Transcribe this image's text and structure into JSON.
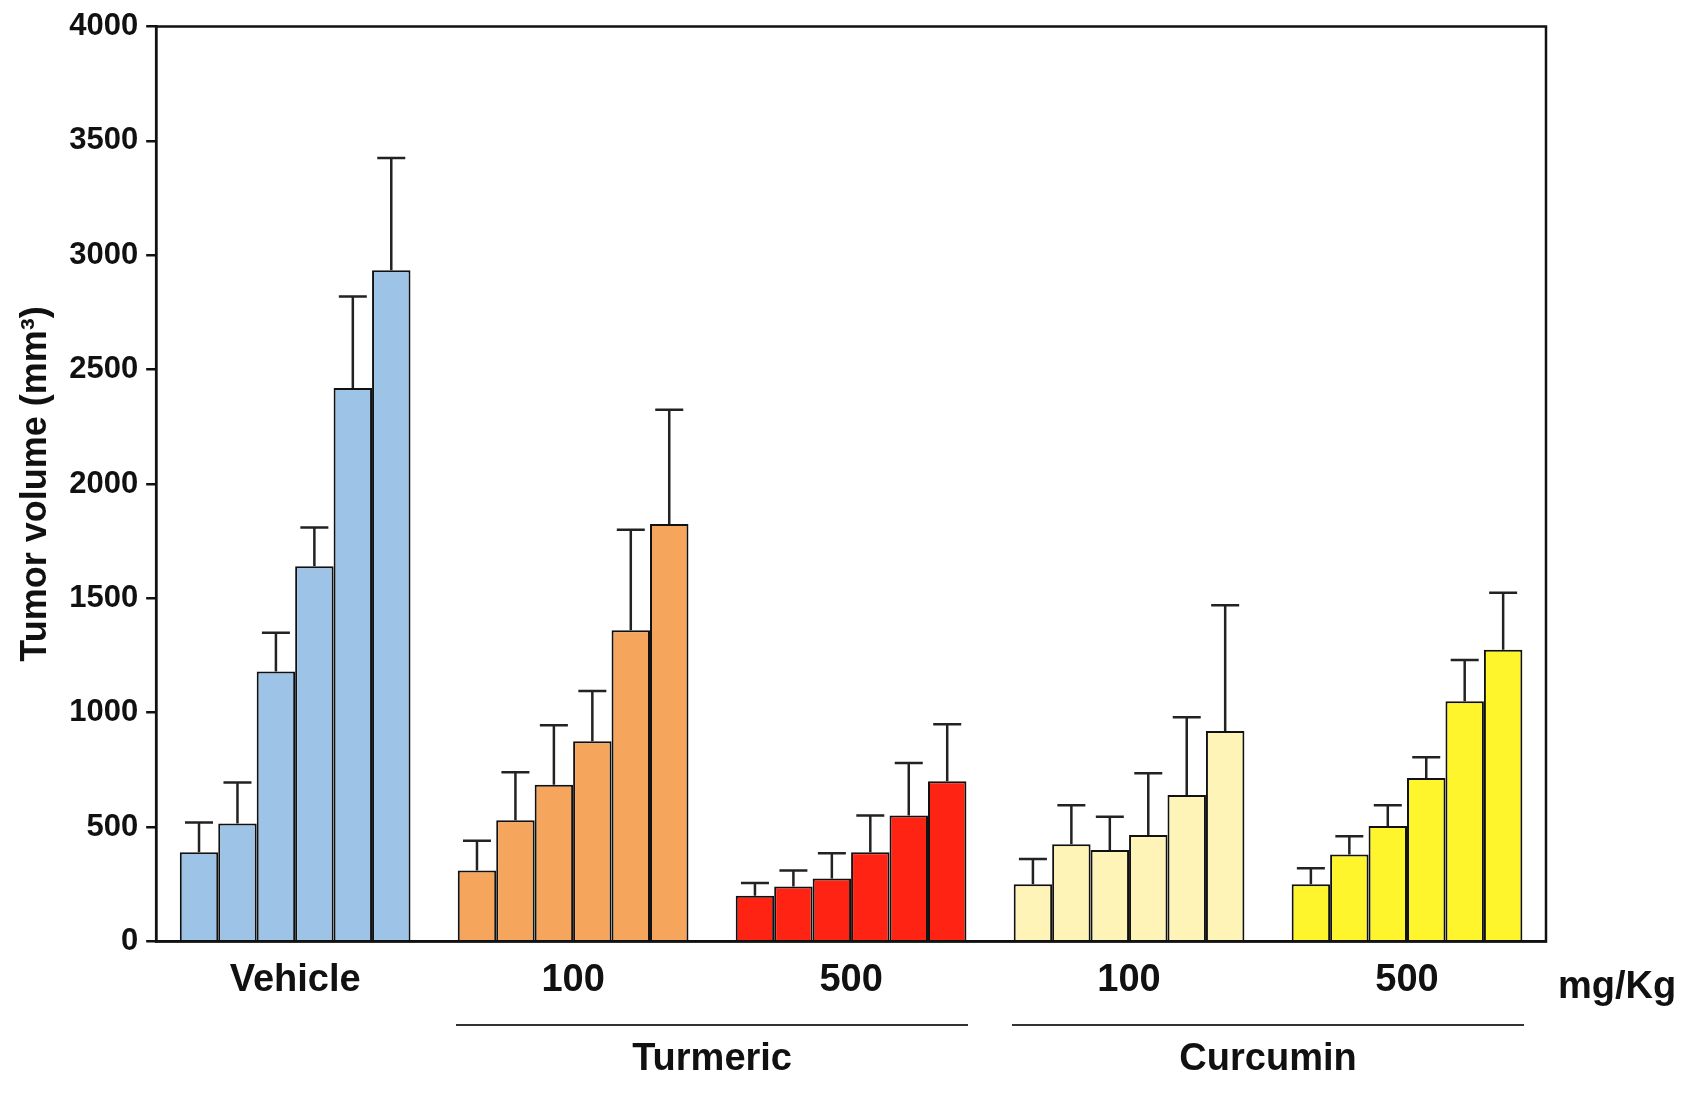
{
  "chart_data": {
    "type": "bar",
    "ylabel": "Tumor volume (mm³)",
    "categories": [
      "Vehicle",
      "100",
      "500",
      "100",
      "500"
    ],
    "series": [
      {
        "colors": [
          "#9dc3e6",
          "#f5a55c",
          "#fe2312",
          "#fff4b8",
          "#fff52c"
        ],
        "values": [
          390,
          310,
          200,
          250,
          250
        ],
        "errors": [
          130,
          130,
          55,
          110,
          70
        ]
      },
      {
        "colors": [
          "#9dc3e6",
          "#f5a55c",
          "#fe2312",
          "#fff4b8",
          "#fff52c"
        ],
        "values": [
          515,
          530,
          240,
          425,
          380
        ],
        "errors": [
          180,
          210,
          70,
          170,
          80
        ]
      },
      {
        "colors": [
          "#9dc3e6",
          "#f5a55c",
          "#fe2312",
          "#fff4b8",
          "#fff52c"
        ],
        "values": [
          1180,
          685,
          275,
          400,
          505
        ],
        "errors": [
          170,
          260,
          110,
          145,
          90
        ]
      },
      {
        "colors": [
          "#9dc3e6",
          "#f5a55c",
          "#fe2312",
          "#fff4b8",
          "#fff52c"
        ],
        "values": [
          1640,
          875,
          390,
          465,
          715
        ],
        "errors": [
          170,
          220,
          160,
          270,
          90
        ]
      },
      {
        "colors": [
          "#9dc3e6",
          "#f5a55c",
          "#fe2312",
          "#fff4b8",
          "#fff52c"
        ],
        "values": [
          2420,
          1360,
          550,
          640,
          1050
        ],
        "errors": [
          400,
          440,
          230,
          340,
          180
        ]
      },
      {
        "colors": [
          "#9dc3e6",
          "#f5a55c",
          "#fe2312",
          "#fff4b8",
          "#fff52c"
        ],
        "values": [
          2935,
          1825,
          700,
          920,
          1275
        ],
        "errors": [
          490,
          500,
          250,
          550,
          250
        ]
      }
    ],
    "ylim": [
      0,
      4000
    ],
    "yticks": [
      0,
      500,
      1000,
      1500,
      2000,
      2500,
      3000,
      3500,
      4000
    ],
    "grid": false,
    "legend": false,
    "annotations": [
      "mg/Kg",
      "Turmeric",
      "Curcumin"
    ]
  }
}
